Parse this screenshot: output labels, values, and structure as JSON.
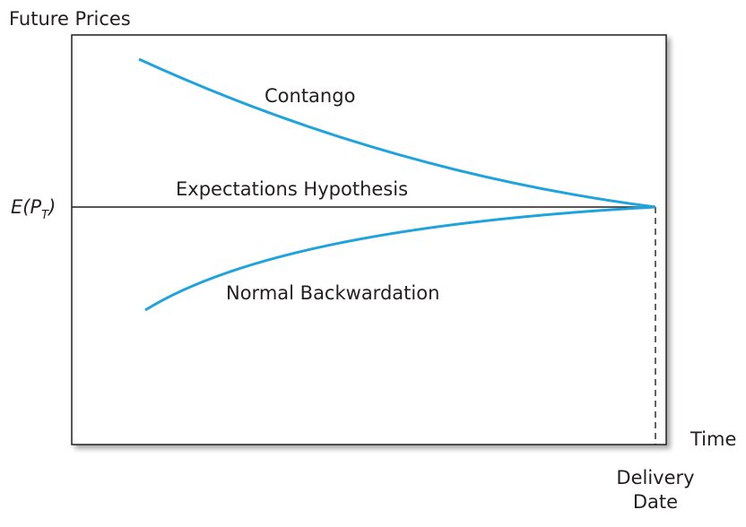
{
  "y_axis_label": "Future Prices",
  "x_axis_label": "Time",
  "delivery_label_line1": "Delivery",
  "delivery_label_line2": "Date",
  "ep_label": {
    "prefix": "E(P",
    "subscript": "T",
    "suffix": ")"
  },
  "curves": [
    {
      "id": "contango",
      "label": "Contango",
      "color": "#1fa3dc"
    },
    {
      "id": "expectations",
      "label": "Expectations Hypothesis",
      "color": "#231f20"
    },
    {
      "id": "backwardation",
      "label": "Normal Backwardation",
      "color": "#1fa3dc"
    }
  ]
}
